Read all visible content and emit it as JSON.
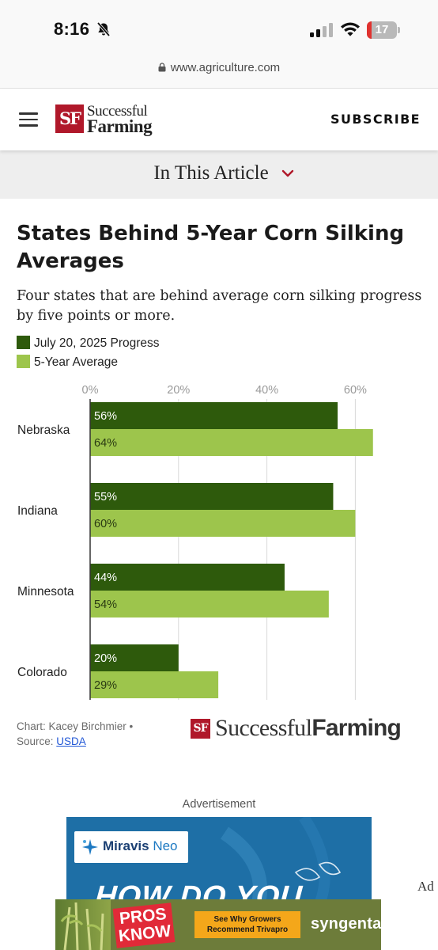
{
  "status": {
    "time": "8:16",
    "battery_level": "17",
    "battery_fraction": 0.17
  },
  "browser": {
    "url": "www.agriculture.com"
  },
  "header": {
    "logo_badge": "SF",
    "logo_line1": "Successful",
    "logo_line2": "Farming",
    "subscribe_label": "SUBSCRIBE"
  },
  "article_nav": {
    "label": "In This Article"
  },
  "colors": {
    "progress": "#2e5a0c",
    "average": "#9dc54c",
    "gridline": "#d9d9d9",
    "axis": "#333333",
    "brand_red": "#b0182a"
  },
  "chart_data": {
    "type": "bar",
    "orientation": "horizontal",
    "title": "States Behind 5-Year Corn Silking Averages",
    "subtitle": "Four states that are behind average corn silking progress by five points or more.",
    "categories": [
      "Nebraska",
      "Indiana",
      "Minnesota",
      "Colorado"
    ],
    "series": [
      {
        "name": "July 20, 2025 Progress",
        "values": [
          56,
          55,
          44,
          20
        ],
        "labels": [
          "56%",
          "55%",
          "44%",
          "20%"
        ]
      },
      {
        "name": "5-Year Average",
        "values": [
          64,
          60,
          54,
          29
        ],
        "labels": [
          "64%",
          "60%",
          "54%",
          "29%"
        ]
      }
    ],
    "xaxis": {
      "ticks": [
        0,
        20,
        40,
        60
      ],
      "tick_labels": [
        "0%",
        "20%",
        "40%",
        "60%"
      ],
      "position": "top"
    },
    "xlim": [
      0,
      64
    ],
    "grid": true,
    "legend_position": "top-left"
  },
  "credit": {
    "line1": "Chart: Kacey Birchmier •",
    "source_prefix": "Source: ",
    "source_link": "USDA",
    "footer_badge": "SF",
    "footer_name_light": "Successful",
    "footer_name_bold": "Farming"
  },
  "ads": {
    "label": "Advertisement",
    "side_label": "Ad",
    "brand_name": "Miravis",
    "brand_sub": "Neo",
    "headline": "HOW DO YOU",
    "banner_badge_line1": "PROS",
    "banner_badge_line2": "KNOW",
    "banner_cta_line1": "See Why Growers",
    "banner_cta_line2": "Recommend Trivapro",
    "banner_brand": "syngenta"
  }
}
